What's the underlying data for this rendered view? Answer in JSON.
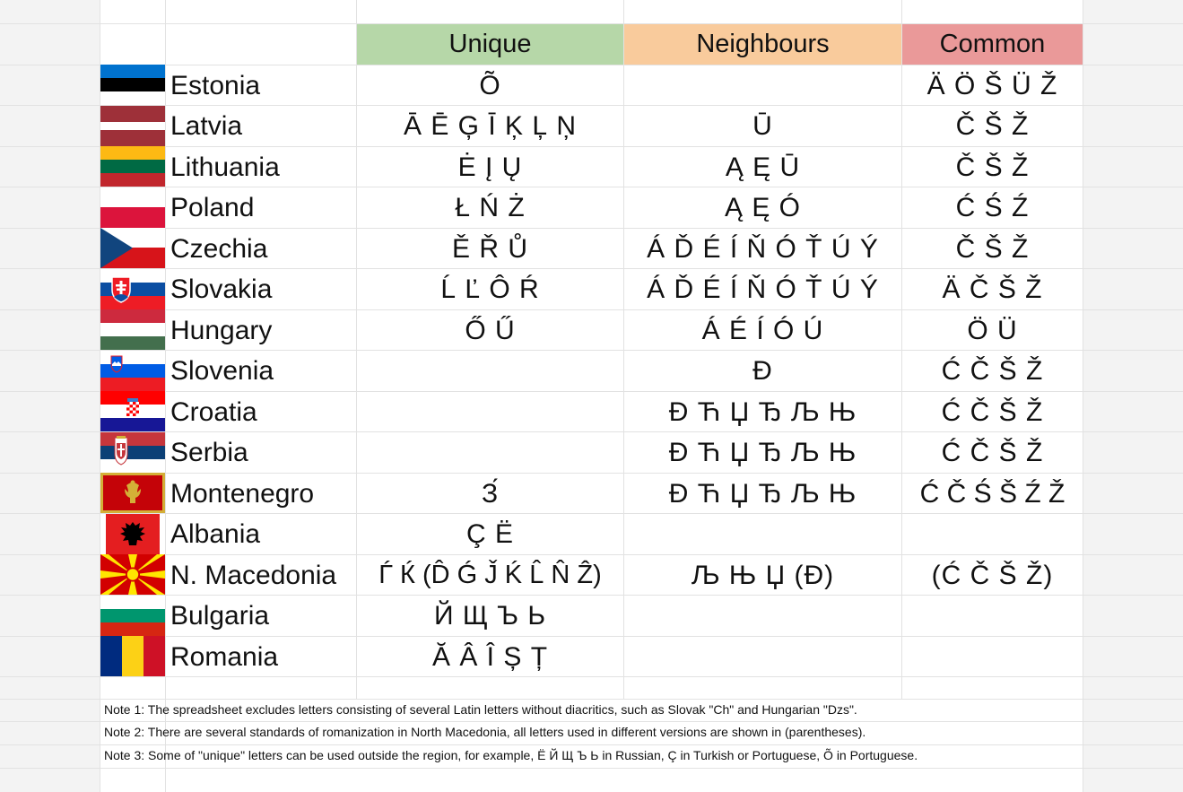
{
  "headers": {
    "unique": "Unique",
    "neighbours": "Neighbours",
    "common": "Common"
  },
  "header_colors": {
    "unique": "#b6d7a8",
    "neighbours": "#f9cb9c",
    "common": "#ea9999"
  },
  "rows": [
    {
      "country": "Estonia",
      "flag": "estonia-flag",
      "unique": "Õ",
      "neighbours": "",
      "common": "Ä Ö Š Ü Ž"
    },
    {
      "country": "Latvia",
      "flag": "latvia-flag",
      "unique": "Ā Ē Ģ Ī Ķ Ļ Ņ",
      "neighbours": "Ū",
      "common": "Č Š Ž"
    },
    {
      "country": "Lithuania",
      "flag": "lithuania-flag",
      "unique": "Ė Į Ų",
      "neighbours": "Ą Ę Ū",
      "common": "Č Š Ž"
    },
    {
      "country": "Poland",
      "flag": "poland-flag",
      "unique": "Ł Ń Ż",
      "neighbours": "Ą Ę Ó",
      "common": "Ć Ś Ź"
    },
    {
      "country": "Czechia",
      "flag": "czechia-flag",
      "unique": "Ě Ř Ů",
      "neighbours": "Á Ď É Í Ň Ó Ť Ú Ý",
      "common": "Č Š Ž"
    },
    {
      "country": "Slovakia",
      "flag": "slovakia-flag",
      "unique": "Ĺ Ľ Ô Ŕ",
      "neighbours": "Á Ď É Í Ň Ó Ť Ú Ý",
      "common": "Ä Č Š Ž"
    },
    {
      "country": "Hungary",
      "flag": "hungary-flag",
      "unique": "Ő Ű",
      "neighbours": "Á É Í Ó Ú",
      "common": "Ö Ü"
    },
    {
      "country": "Slovenia",
      "flag": "slovenia-flag",
      "unique": "",
      "neighbours": "Đ",
      "common": "Ć Č Š Ž"
    },
    {
      "country": "Croatia",
      "flag": "croatia-flag",
      "unique": "",
      "neighbours": "Đ Ћ Џ Ђ Љ Њ",
      "common": "Ć Č Š Ž"
    },
    {
      "country": "Serbia",
      "flag": "serbia-flag",
      "unique": "",
      "neighbours": "Đ Ћ Џ Ђ Љ Њ",
      "common": "Ć Č Š Ž"
    },
    {
      "country": "Montenegro",
      "flag": "montenegro-flag",
      "unique": "З́",
      "neighbours": "Đ Ћ Џ Ђ Љ Њ",
      "common": "Ć Č Ś Š Ź Ž"
    },
    {
      "country": "Albania",
      "flag": "albania-flag",
      "unique": "Ç Ë",
      "neighbours": "",
      "common": ""
    },
    {
      "country": "N. Macedonia",
      "flag": "north-macedonia-flag",
      "unique": "Ѓ Ќ (D̂ Ǵ J̌ Ḱ L̂ N̂ Ẑ)",
      "neighbours": "Љ Њ Џ (Đ)",
      "common": "(Ć Č Š Ž)"
    },
    {
      "country": "Bulgaria",
      "flag": "bulgaria-flag",
      "unique": "Й Щ Ъ Ь",
      "neighbours": "",
      "common": ""
    },
    {
      "country": "Romania",
      "flag": "romania-flag",
      "unique": "Ă Â Î Ș Ț",
      "neighbours": "",
      "common": ""
    }
  ],
  "notes": [
    "Note 1: The spreadsheet excludes letters consisting of several Latin letters without diacritics, such as Slovak \"Ch\" and Hungarian \"Dzs\".",
    "Note 2: There are several standards of romanization in North Macedonia, all letters used in different versions are shown in (parentheses).",
    "Note 3: Some of \"unique\" letters can be used outside the region, for example, Ё Й Щ Ъ Ь in Russian, Ç in Turkish or Portuguese, Õ in Portuguese."
  ]
}
